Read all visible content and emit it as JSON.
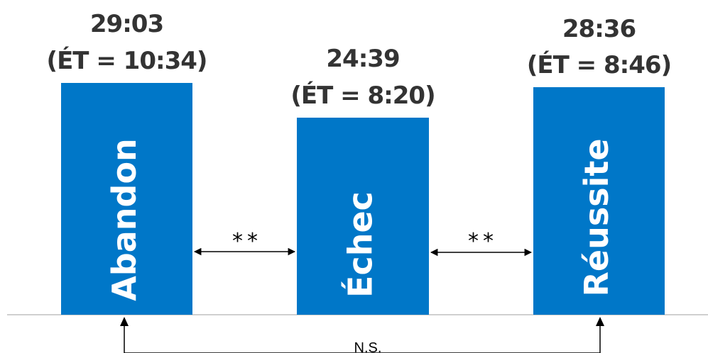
{
  "chart_data": {
    "type": "bar",
    "categories": [
      "Abandon",
      "Échec",
      "Réussite"
    ],
    "values": [
      "29:03",
      "24:39",
      "28:36"
    ],
    "sd": [
      "10:34",
      "8:20",
      "8:46"
    ],
    "value_labels": [
      "29:03",
      "24:39",
      "28:36"
    ],
    "sd_labels": [
      "(ÉT = 10:34)",
      "(ÉT = 8:20)",
      "(ÉT = 8:46)"
    ],
    "bar_color": "#0077c8",
    "comparisons": [
      {
        "from": "Abandon",
        "to": "Échec",
        "label": "**"
      },
      {
        "from": "Échec",
        "to": "Réussite",
        "label": "**"
      },
      {
        "from": "Abandon",
        "to": "Réussite",
        "label": "N.S."
      }
    ]
  }
}
